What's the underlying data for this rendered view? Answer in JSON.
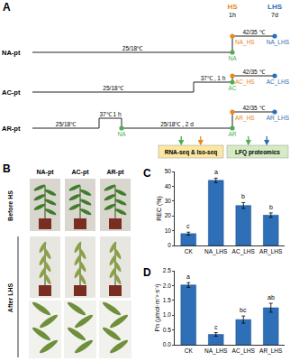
{
  "diagram": {
    "label": "A",
    "stages": [
      {
        "label": "HS",
        "sub": "1h",
        "color": "#e8891c"
      },
      {
        "label": "LHS",
        "sub": "7d",
        "color": "#2f6db5"
      }
    ],
    "rows": [
      {
        "name": "NA-pt",
        "segments": [
          "25/18℃",
          "42/35 ℃"
        ],
        "points": [
          {
            "label": "NA",
            "color": "#4caf50"
          },
          {
            "label": "NA_HS",
            "color": "#e8891c"
          },
          {
            "label": "NA_LHS",
            "color": "#2f6db5"
          }
        ]
      },
      {
        "name": "AC-pt",
        "segments": [
          "25/18℃",
          "37℃ , 1 h",
          "42/35 ℃"
        ],
        "points": [
          {
            "label": "AC",
            "color": "#4caf50"
          },
          {
            "label": "AC_HS",
            "color": "#e8891c"
          },
          {
            "label": "AC_LHS",
            "color": "#2f6db5"
          }
        ]
      },
      {
        "name": "AR-pt",
        "segments": [
          "25/18℃",
          "37℃ 1 h",
          "25/18℃ , 2 d",
          "42/35 ℃"
        ],
        "points": [
          {
            "label": "NA",
            "color": "#4caf50"
          },
          {
            "label": "AR",
            "color": "#4caf50"
          },
          {
            "label": "AR_HS",
            "color": "#e8891c"
          },
          {
            "label": "AR_LHS",
            "color": "#2f6db5"
          }
        ]
      }
    ],
    "outputs": [
      {
        "label": "RNA-seq & Iso-seq",
        "color": "#fbe7a1"
      },
      {
        "label": "LFQ proteomics",
        "color": "#d5ebc4"
      }
    ]
  },
  "photos": {
    "label": "B",
    "columns": [
      "NA-pt",
      "AC-pt",
      "AR-pt"
    ],
    "rows": [
      "Before HS",
      "After LHS"
    ]
  },
  "chart_data": [
    {
      "type": "bar",
      "title": "C",
      "y_label": "REC (%)",
      "categories": [
        "CK",
        "NA_LHS",
        "AC_LHS",
        "AR_LHS"
      ],
      "values": [
        8,
        44,
        27,
        20.5
      ],
      "errors": [
        1,
        1.5,
        2,
        1.5
      ],
      "annotations": [
        {
          "x": "CK",
          "text": "c"
        },
        {
          "x": "NA_LHS",
          "text": "a"
        },
        {
          "x": "AC_LHS",
          "text": "b"
        },
        {
          "x": "AR_LHS",
          "text": "b"
        }
      ],
      "color": "#2e6fb7",
      "ylim": [
        0,
        50
      ],
      "yticks": [
        0,
        10,
        20,
        30,
        40,
        50
      ],
      "grid": false
    },
    {
      "type": "bar",
      "title": "D",
      "y_label": "Pn (μmol·m⁻²·s⁻¹)",
      "categories": [
        "CK",
        "NA_LHS",
        "AC_LHS",
        "AR_LHS"
      ],
      "values": [
        2.02,
        0.35,
        0.85,
        1.25
      ],
      "errors": [
        0.08,
        0.06,
        0.12,
        0.15
      ],
      "annotations": [
        {
          "x": "CK",
          "text": "a"
        },
        {
          "x": "NA_LHS",
          "text": "c"
        },
        {
          "x": "AC_LHS",
          "text": "bc"
        },
        {
          "x": "AR_LHS",
          "text": "ab"
        }
      ],
      "color": "#2e6fb7",
      "ylim": [
        0,
        2.5
      ],
      "yticks": [
        {
          "value": 0,
          "label": "0.0"
        },
        {
          "value": 0.5,
          "label": "0.5"
        },
        {
          "value": 1,
          "label": "1.0"
        },
        {
          "value": 1.5,
          "label": "1.5"
        },
        {
          "value": 2,
          "label": "2.0"
        },
        {
          "value": 2.5,
          "label": "2.5"
        }
      ],
      "grid": false
    }
  ]
}
